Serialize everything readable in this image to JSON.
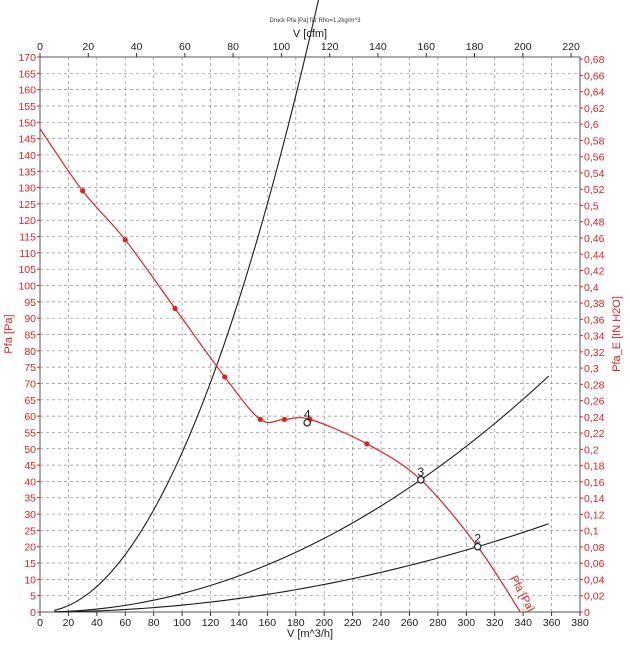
{
  "chart_data": {
    "type": "line",
    "title": "Druck Pfa [Pa] für Rho=1,2kg/m^3",
    "x_bottom": {
      "label": "V [m^3/h]",
      "range": [
        0,
        380
      ],
      "ticks": [
        0,
        20,
        40,
        60,
        80,
        100,
        120,
        140,
        160,
        180,
        200,
        220,
        240,
        260,
        280,
        300,
        320,
        340,
        360,
        380
      ]
    },
    "x_top": {
      "label": "V [cfm]",
      "range": [
        0,
        223.7
      ],
      "ticks": [
        0,
        20,
        40,
        60,
        80,
        100,
        120,
        140,
        160,
        180,
        200,
        220
      ]
    },
    "y_left": {
      "label": "Pfa [Pa]",
      "range": [
        0,
        170
      ],
      "ticks": [
        0,
        5,
        10,
        15,
        20,
        25,
        30,
        35,
        40,
        45,
        50,
        55,
        60,
        65,
        70,
        75,
        80,
        85,
        90,
        95,
        100,
        105,
        110,
        115,
        120,
        125,
        130,
        135,
        140,
        145,
        150,
        155,
        160,
        165,
        170
      ]
    },
    "y_right": {
      "label": "Pfa_E [IN H2O]",
      "range": [
        0,
        0.6826
      ],
      "ticks": [
        "0",
        "0,02",
        "0,04",
        "0,06",
        "0,08",
        "0,1",
        "0,12",
        "0,14",
        "0,16",
        "0,18",
        "0,2",
        "0,22",
        "0,24",
        "0,26",
        "0,28",
        "0,3",
        "0,32",
        "0,34",
        "0,36",
        "0,38",
        "0,4",
        "0,42",
        "0,44",
        "0,46",
        "0,48",
        "0,5",
        "0,52",
        "0,54",
        "0,56",
        "0,58",
        "0,6",
        "0,62",
        "0,64",
        "0,66",
        "0,68"
      ]
    },
    "grid": true,
    "colors": {
      "fan_curve": "#e02020",
      "system_curve": "#1a1a1a",
      "axis_red": "#e02020",
      "axis_black": "#1a1a1a"
    },
    "fan_curve": {
      "name": "Pfa [Pa]",
      "points": [
        [
          0,
          148
        ],
        [
          30,
          129
        ],
        [
          60,
          114
        ],
        [
          95,
          93
        ],
        [
          130,
          72
        ],
        [
          155,
          59
        ],
        [
          172,
          59
        ],
        [
          190,
          59
        ],
        [
          230,
          51.5
        ],
        [
          268,
          40.5
        ],
        [
          308,
          20
        ],
        [
          338,
          0
        ]
      ],
      "markers": [
        [
          30,
          129
        ],
        [
          60,
          114
        ],
        [
          95,
          93
        ],
        [
          130,
          72
        ],
        [
          155,
          59
        ],
        [
          172,
          59
        ],
        [
          190,
          59
        ],
        [
          230,
          51.5
        ]
      ]
    },
    "system_curves": [
      {
        "k": 0.004883,
        "x_end": 309.5
      },
      {
        "k": 0.000564,
        "x_end": 358
      },
      {
        "k": 0.000211,
        "x_end": 358
      }
    ],
    "operating_points": [
      {
        "label": "4",
        "x": 188,
        "y": 58
      },
      {
        "label": "3",
        "x": 268,
        "y": 40.5
      },
      {
        "label": "2",
        "x": 308,
        "y": 20
      }
    ]
  }
}
